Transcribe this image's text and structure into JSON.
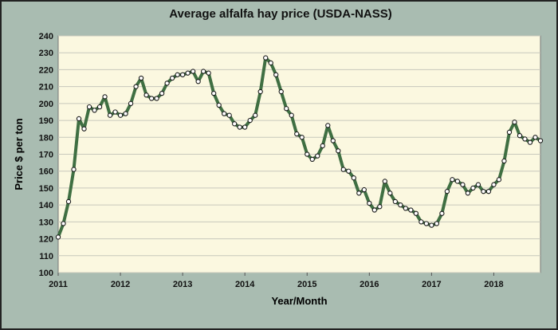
{
  "chart_data": {
    "type": "line",
    "title": "Average alfalfa hay price (USDA-NASS)",
    "xlabel": "Year/Month",
    "ylabel": "Price $ per ton",
    "ylim": [
      100,
      240
    ],
    "yticks": [
      100,
      110,
      120,
      130,
      140,
      150,
      160,
      170,
      180,
      190,
      200,
      210,
      220,
      230,
      240
    ],
    "xticks": [
      "2011",
      "2012",
      "2013",
      "2014",
      "2015",
      "2016",
      "2017",
      "2018"
    ],
    "xlim": [
      "2011-01",
      "2018-10"
    ],
    "grid": "horizontal",
    "colors": {
      "line": "#3f6f42",
      "marker_fill": "#ffffff",
      "marker_edge": "#1a1a1a",
      "plot_bg": "#fbf8e0",
      "frame_bg": "#a9bcb1"
    },
    "series": [
      {
        "x": [
          "2011-01",
          "2011-02",
          "2011-03",
          "2011-04",
          "2011-05",
          "2011-06",
          "2011-07",
          "2011-08",
          "2011-09",
          "2011-10",
          "2011-11",
          "2011-12",
          "2012-01",
          "2012-02",
          "2012-03",
          "2012-04",
          "2012-05",
          "2012-06",
          "2012-07",
          "2012-08",
          "2012-09",
          "2012-10",
          "2012-11",
          "2012-12",
          "2013-01",
          "2013-02",
          "2013-03",
          "2013-04",
          "2013-05",
          "2013-06",
          "2013-07",
          "2013-08",
          "2013-09",
          "2013-10",
          "2013-11",
          "2013-12",
          "2014-01",
          "2014-02",
          "2014-03",
          "2014-04",
          "2014-05",
          "2014-06",
          "2014-07",
          "2014-08",
          "2014-09",
          "2014-10",
          "2014-11",
          "2014-12",
          "2015-01",
          "2015-02",
          "2015-03",
          "2015-04",
          "2015-05",
          "2015-06",
          "2015-07",
          "2015-08",
          "2015-09",
          "2015-10",
          "2015-11",
          "2015-12",
          "2016-01",
          "2016-02",
          "2016-03",
          "2016-04",
          "2016-05",
          "2016-06",
          "2016-07",
          "2016-08",
          "2016-09",
          "2016-10",
          "2016-11",
          "2016-12",
          "2017-01",
          "2017-02",
          "2017-03",
          "2017-04",
          "2017-05",
          "2017-06",
          "2017-07",
          "2017-08",
          "2017-09",
          "2017-10",
          "2017-11",
          "2017-12",
          "2018-01",
          "2018-02",
          "2018-03",
          "2018-04",
          "2018-05",
          "2018-06",
          "2018-07",
          "2018-08",
          "2018-09",
          "2018-10"
        ],
        "values": [
          121,
          129,
          142,
          161,
          191,
          185,
          198,
          196,
          198,
          204,
          193,
          195,
          193,
          194,
          200,
          210,
          215,
          205,
          203,
          203,
          206,
          212,
          215,
          217,
          217,
          218,
          219,
          213,
          219,
          218,
          206,
          199,
          194,
          193,
          188,
          186,
          186,
          190,
          193,
          207,
          227,
          224,
          217,
          207,
          197,
          193,
          182,
          180,
          170,
          167,
          169,
          175,
          187,
          178,
          172,
          161,
          160,
          156,
          147,
          149,
          141,
          137,
          139,
          154,
          147,
          142,
          140,
          138,
          137,
          135,
          130,
          129,
          128,
          129,
          135,
          148,
          155,
          154,
          152,
          147,
          150,
          152,
          148,
          148,
          152,
          155,
          166,
          183,
          189,
          181,
          179,
          177,
          180,
          178
        ]
      }
    ]
  }
}
